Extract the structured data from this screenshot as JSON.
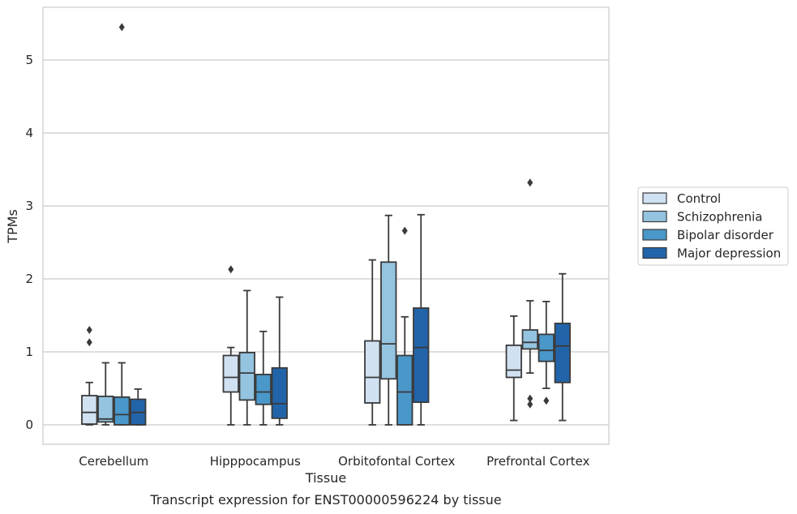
{
  "caption": "Transcript expression for ENST00000596224 by tissue",
  "chart_data": {
    "type": "box",
    "title": "",
    "xlabel": "Tissue",
    "ylabel": "TPMs",
    "ylim": [
      -0.26,
      5.72
    ],
    "yticks": [
      0,
      1,
      2,
      3,
      4,
      5
    ],
    "grid": "horizontal",
    "legend_position": "right",
    "categories": [
      "Cerebellum",
      "Hipppocampus",
      "Orbitofontal Cortex",
      "Prefrontal Cortex"
    ],
    "series": [
      {
        "name": "Control",
        "color": "#d0e1f2",
        "boxes": [
          {
            "whislo": 0.0,
            "q1": 0.01,
            "med": 0.17,
            "q3": 0.4,
            "whishi": 0.58,
            "fliers": [
              1.13,
              1.3
            ]
          },
          {
            "whislo": 0.0,
            "q1": 0.45,
            "med": 0.65,
            "q3": 0.95,
            "whishi": 1.06,
            "fliers": [
              2.13
            ]
          },
          {
            "whislo": 0.0,
            "q1": 0.3,
            "med": 0.65,
            "q3": 1.15,
            "whishi": 2.26,
            "fliers": []
          },
          {
            "whislo": 0.06,
            "q1": 0.65,
            "med": 0.75,
            "q3": 1.09,
            "whishi": 1.49,
            "fliers": []
          }
        ]
      },
      {
        "name": "Schizophrenia",
        "color": "#94c4df",
        "boxes": [
          {
            "whislo": 0.0,
            "q1": 0.04,
            "med": 0.08,
            "q3": 0.39,
            "whishi": 0.85,
            "fliers": []
          },
          {
            "whislo": 0.0,
            "q1": 0.34,
            "med": 0.71,
            "q3": 0.99,
            "whishi": 1.84,
            "fliers": []
          },
          {
            "whislo": 0.0,
            "q1": 0.63,
            "med": 1.11,
            "q3": 2.23,
            "whishi": 2.87,
            "fliers": []
          },
          {
            "whislo": 0.71,
            "q1": 1.04,
            "med": 1.13,
            "q3": 1.3,
            "whishi": 1.7,
            "fliers": [
              0.28,
              0.36,
              3.32
            ]
          }
        ]
      },
      {
        "name": "Bipolar disorder",
        "color": "#4a98c9",
        "boxes": [
          {
            "whislo": 0.0,
            "q1": 0.0,
            "med": 0.14,
            "q3": 0.38,
            "whishi": 0.85,
            "fliers": [
              5.45
            ]
          },
          {
            "whislo": 0.0,
            "q1": 0.28,
            "med": 0.45,
            "q3": 0.69,
            "whishi": 1.28,
            "fliers": []
          },
          {
            "whislo": 0.0,
            "q1": 0.0,
            "med": 0.45,
            "q3": 0.95,
            "whishi": 1.48,
            "fliers": [
              2.66
            ]
          },
          {
            "whislo": 0.5,
            "q1": 0.87,
            "med": 1.02,
            "q3": 1.24,
            "whishi": 1.69,
            "fliers": [
              0.33
            ]
          }
        ]
      },
      {
        "name": "Major depression",
        "color": "#2264aa",
        "boxes": [
          {
            "whislo": 0.0,
            "q1": 0.0,
            "med": 0.17,
            "q3": 0.35,
            "whishi": 0.49,
            "fliers": []
          },
          {
            "whislo": 0.0,
            "q1": 0.09,
            "med": 0.29,
            "q3": 0.78,
            "whishi": 1.75,
            "fliers": []
          },
          {
            "whislo": 0.0,
            "q1": 0.31,
            "med": 1.06,
            "q3": 1.6,
            "whishi": 2.88,
            "fliers": []
          },
          {
            "whislo": 0.06,
            "q1": 0.58,
            "med": 1.08,
            "q3": 1.39,
            "whishi": 2.07,
            "fliers": []
          }
        ]
      }
    ]
  }
}
